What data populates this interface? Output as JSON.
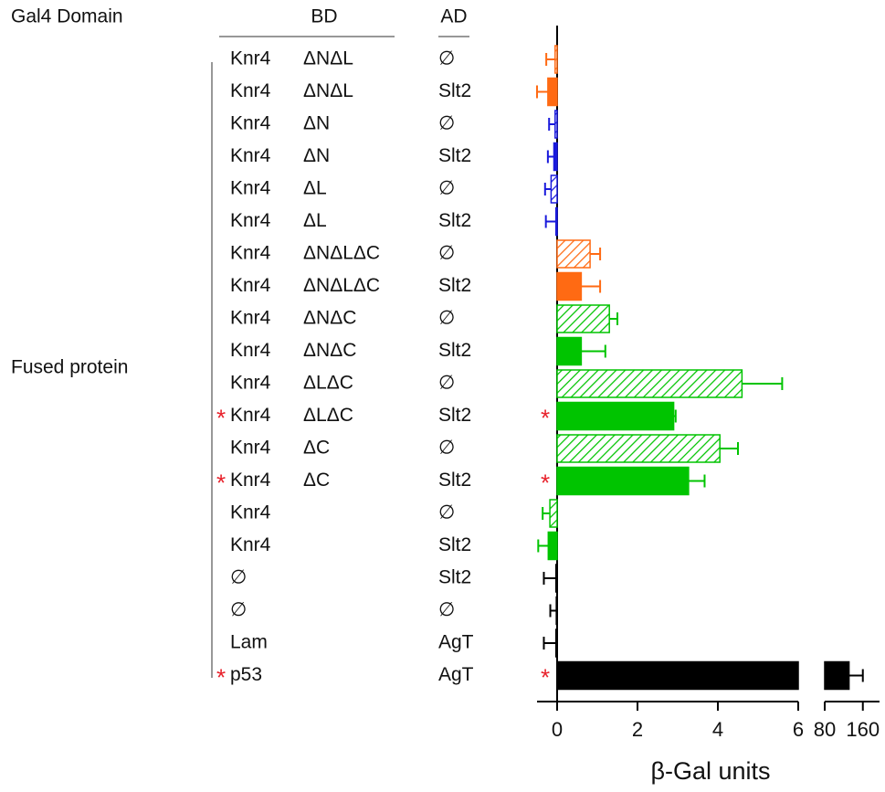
{
  "header": "Gal4 Domain",
  "bd_header": "BD",
  "ad_header": "AD",
  "group_label": "Fused protein",
  "chart_data": {
    "type": "bar",
    "orientation": "horizontal",
    "xlabel": "β-Gal units",
    "rows": [
      {
        "bd": "Knr4",
        "domain": "ΔNΔL",
        "ad": "∅"
      },
      {
        "bd": "Knr4",
        "domain": "ΔNΔL",
        "ad": "Slt2"
      },
      {
        "bd": "Knr4",
        "domain": "ΔN",
        "ad": "∅"
      },
      {
        "bd": "Knr4",
        "domain": "ΔN",
        "ad": "Slt2"
      },
      {
        "bd": "Knr4",
        "domain": "ΔL",
        "ad": "∅"
      },
      {
        "bd": "Knr4",
        "domain": "ΔL",
        "ad": "Slt2"
      },
      {
        "bd": "Knr4",
        "domain": "ΔNΔLΔC",
        "ad": "∅"
      },
      {
        "bd": "Knr4",
        "domain": "ΔNΔLΔC",
        "ad": "Slt2"
      },
      {
        "bd": "Knr4",
        "domain": "ΔNΔC",
        "ad": "∅"
      },
      {
        "bd": "Knr4",
        "domain": "ΔNΔC",
        "ad": "Slt2"
      },
      {
        "bd": "Knr4",
        "domain": "ΔLΔC",
        "ad": "∅"
      },
      {
        "bd": "Knr4",
        "domain": "ΔLΔC",
        "ad": "Slt2",
        "significance": "*"
      },
      {
        "bd": "Knr4",
        "domain": "ΔC",
        "ad": "∅"
      },
      {
        "bd": "Knr4",
        "domain": "ΔC",
        "ad": "Slt2",
        "significance": "*"
      },
      {
        "bd": "Knr4",
        "ad": "∅"
      },
      {
        "bd": "Knr4",
        "ad": "Slt2"
      },
      {
        "bd": "∅",
        "ad": "Slt2"
      },
      {
        "bd": "∅",
        "ad": "∅"
      },
      {
        "bd": "Lam",
        "ad": "AgT"
      },
      {
        "bd": "p53",
        "ad": "AgT",
        "significance": "*"
      }
    ],
    "values": [
      -0.05,
      -0.23,
      -0.05,
      -0.08,
      -0.15,
      -0.03,
      0.82,
      0.6,
      1.3,
      0.6,
      4.6,
      2.9,
      4.05,
      3.27,
      -0.18,
      -0.22,
      -0.03,
      -0.02,
      -0.03,
      131
    ],
    "errors": [
      0.22,
      0.27,
      0.15,
      0.15,
      0.15,
      0.25,
      0.25,
      0.47,
      0.2,
      0.6,
      1.0,
      0.05,
      0.45,
      0.4,
      0.18,
      0.25,
      0.3,
      0.15,
      0.3,
      29
    ],
    "colors": [
      "#ff6a13",
      "#ff6a13",
      "#1a1adc",
      "#1a1adc",
      "#1a1adc",
      "#1a1adc",
      "#ff6a13",
      "#ff6a13",
      "#00c400",
      "#00c400",
      "#00c400",
      "#00c400",
      "#00c400",
      "#00c400",
      "#00c400",
      "#00c400",
      "#000000",
      "#000000",
      "#000000",
      "#000000"
    ],
    "hatched": [
      true,
      false,
      true,
      false,
      true,
      false,
      true,
      false,
      true,
      false,
      true,
      false,
      true,
      false,
      true,
      false,
      false,
      false,
      false,
      false
    ],
    "xlim": [
      -0.5,
      6
    ],
    "xticks": [
      0,
      2,
      4,
      6
    ],
    "x2lim": [
      80,
      195
    ],
    "x2ticks": [
      80,
      160
    ]
  }
}
